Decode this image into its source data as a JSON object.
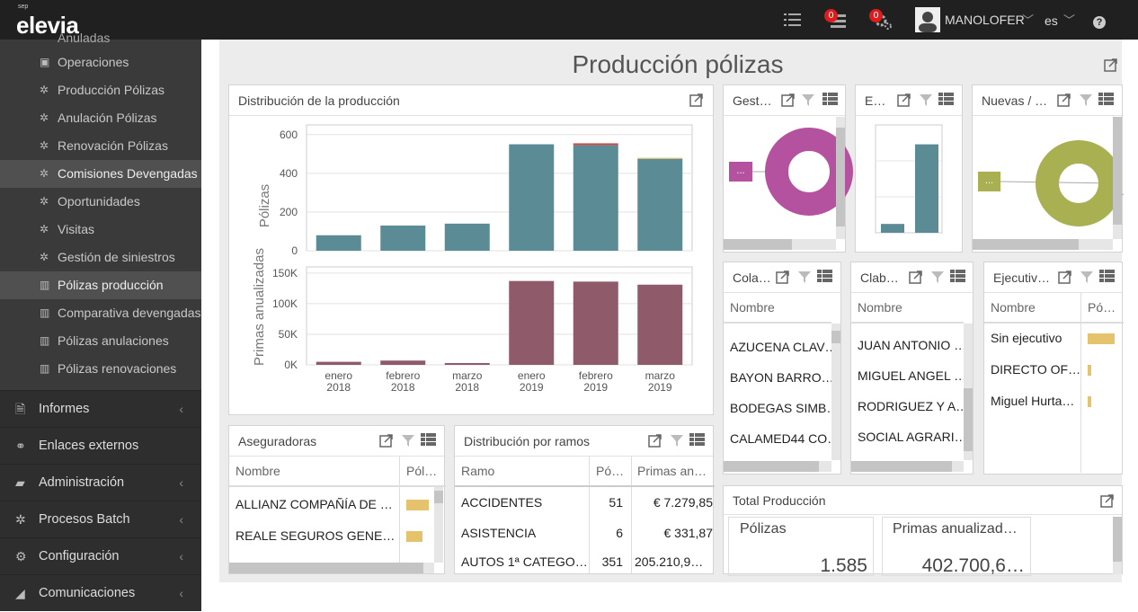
{
  "topbar": {
    "logo_small": "sep",
    "logo": "elevia",
    "notif1": "0",
    "notif2": "0",
    "user": "MANOLOFER",
    "lang": "es"
  },
  "sidebar": {
    "cut_item": "Anuladas",
    "items": [
      "Operaciones",
      "Producción Pólizas",
      "Anulación Pólizas",
      "Renovación Pólizas",
      "Comisiones Devengadas",
      "Oportunidades",
      "Visitas",
      "Gestión de siniestros",
      "Pólizas producción",
      "Comparativa devengadas",
      "Pólizas anulaciones",
      "Pólizas renovaciones"
    ],
    "sections": [
      "Informes",
      "Enlaces externos",
      "Administración",
      "Procesos Batch",
      "Configuración",
      "Comunicaciones"
    ]
  },
  "page": {
    "title": "Producción pólizas"
  },
  "distribucion": {
    "title": "Distribución de la producción"
  },
  "chart_data": {
    "type": "bar",
    "categories": [
      "enero 2018",
      "febrero 2018",
      "marzo 2018",
      "enero 2019",
      "febrero 2019",
      "marzo 2019"
    ],
    "category_lines": [
      [
        "enero",
        "2018"
      ],
      [
        "febrero",
        "2018"
      ],
      [
        "marzo",
        "2018"
      ],
      [
        "enero",
        "2019"
      ],
      [
        "febrero",
        "2019"
      ],
      [
        "marzo",
        "2019"
      ]
    ],
    "series": [
      {
        "name": "Pólizas",
        "values": [
          80,
          130,
          140,
          550,
          545,
          475
        ],
        "stack_top": [
          0,
          0,
          0,
          0,
          10,
          5
        ],
        "color": "#5b8c95",
        "top_colors": [
          "#5b8c95",
          "#5b8c95",
          "#5b8c95",
          "#5b8c95",
          "#c0504d",
          "#e4c36c"
        ],
        "ylim": [
          0,
          650
        ],
        "yticks": [
          0,
          200,
          400,
          600
        ],
        "ytick_labels": [
          "0",
          "200",
          "400",
          "600"
        ],
        "ylabel": "Pólizas"
      },
      {
        "name": "Primas anualizadas",
        "values": [
          5000,
          7000,
          3000,
          137000,
          136000,
          131000
        ],
        "color": "#8f5a6a",
        "ylim": [
          0,
          160000
        ],
        "yticks": [
          0,
          50000,
          100000,
          150000
        ],
        "ytick_labels": [
          "0K",
          "50K",
          "100K",
          "150K"
        ],
        "ylabel": "Primas anualizadas"
      }
    ]
  },
  "gestor": {
    "title": "Gest…",
    "label": "...",
    "color": "#b452a0"
  },
  "e_panel": {
    "title": "E…",
    "values": [
      10,
      100
    ],
    "color": "#5b8c95"
  },
  "nuevas": {
    "title": "Nuevas / …",
    "label": "...",
    "color": "#a9b052"
  },
  "cola": {
    "title": "Cola…",
    "header": "Nombre",
    "rows": [
      "AZUCENA CLAV…",
      "BAYON BARRO…",
      "BODEGAS SIMB…",
      "CALAMED44 CO…"
    ]
  },
  "clab": {
    "title": "Clab…",
    "header": "Nombre",
    "rows": [
      "JUAN ANTONIO …",
      "MIGUEL ANGEL …",
      "RODRIGUEZ Y A…",
      "SOCIAL AGRARI…"
    ]
  },
  "ejec": {
    "title": "Ejecutiv…",
    "header": "Nombre",
    "header2": "Pó…",
    "rows": [
      "Sin ejecutivo",
      "DIRECTO OF…",
      "Miguel Hurta…"
    ],
    "values": [
      30,
      4,
      4
    ],
    "color": "#e4c36c"
  },
  "aseg": {
    "title": "Aseguradoras",
    "header": "Nombre",
    "header2": "Pól…",
    "rows": [
      "ALLIANZ COMPAÑÍA DE …",
      "REALE SEGUROS GENE…",
      "…"
    ],
    "values": [
      25,
      18,
      0
    ],
    "color": "#e4c36c"
  },
  "ramos": {
    "title": "Distribución por ramos",
    "headers": [
      "Ramo",
      "Pó…",
      "Primas an…"
    ],
    "rows": [
      [
        "ACCIDENTES",
        "51",
        "7.279,85 €"
      ],
      [
        "ASISTENCIA",
        "6",
        "331,87 €"
      ],
      [
        "AUTOS 1ª CATEGO…",
        "351",
        "205.210,9…"
      ]
    ]
  },
  "total": {
    "title": "Total Producción",
    "label1": "Pólizas",
    "value1": "1.585",
    "label2": "Primas anualizad…",
    "value2": "402.700,6…"
  }
}
